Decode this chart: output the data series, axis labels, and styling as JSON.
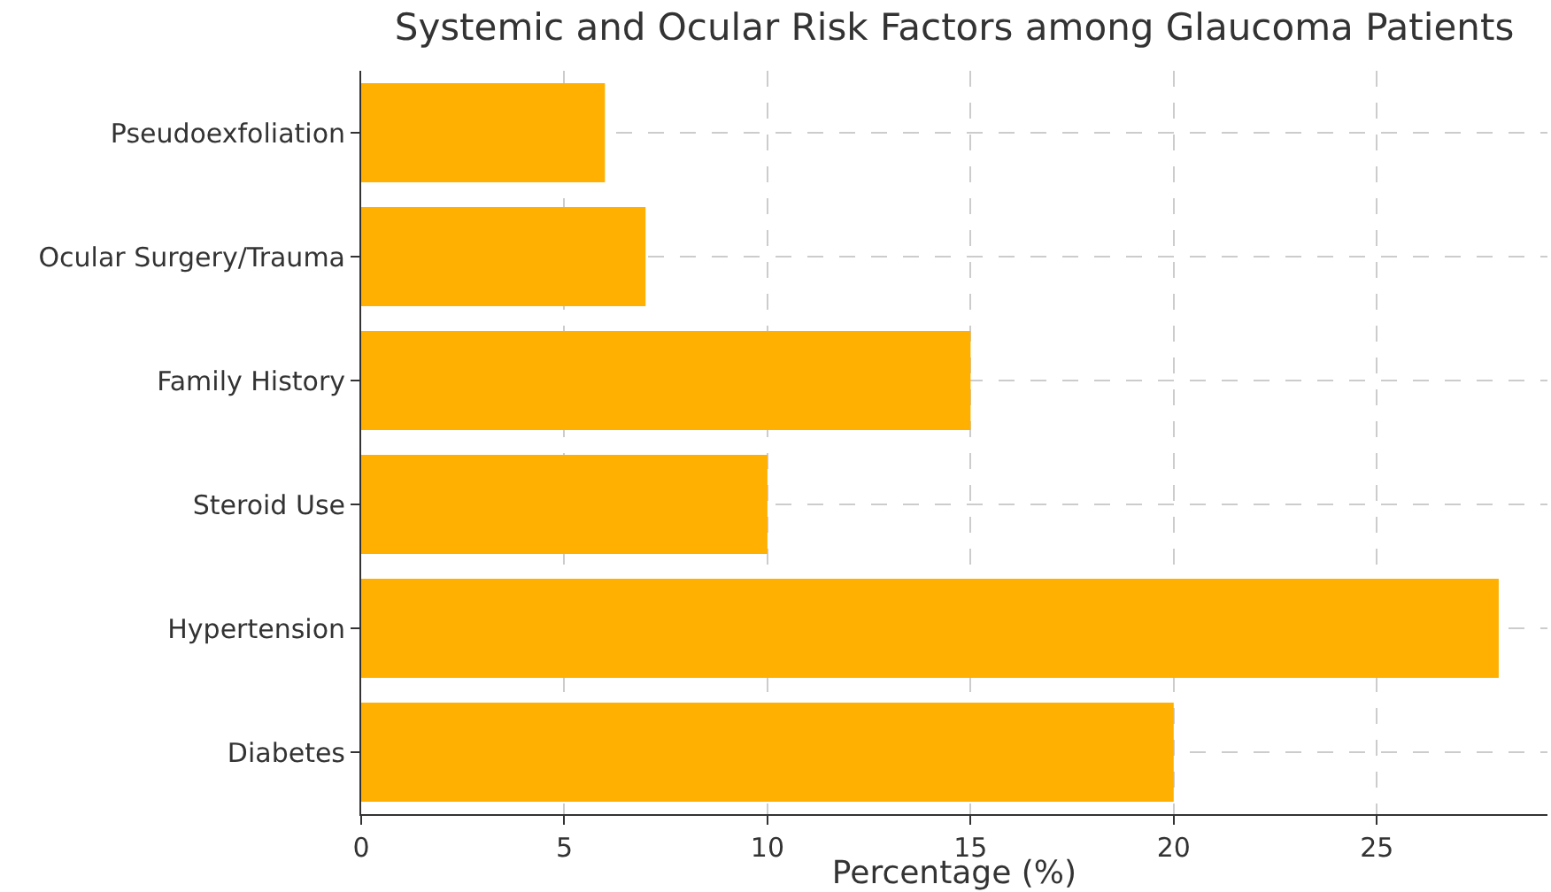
{
  "chart_data": {
    "type": "bar",
    "orientation": "horizontal",
    "title": "Systemic and Ocular Risk Factors among Glaucoma Patients",
    "xlabel": "Percentage (%)",
    "categories": [
      "Pseudoexfoliation",
      "Ocular Surgery/Trauma",
      "Family History",
      "Steroid Use",
      "Hypertension",
      "Diabetes"
    ],
    "values": [
      6,
      7,
      15,
      10,
      28,
      20
    ],
    "color": "#ffb000",
    "xlim": [
      0,
      29.2
    ],
    "xticks": [
      0,
      5,
      10,
      15,
      20,
      25
    ],
    "grid": true,
    "line_style": "dashed"
  }
}
